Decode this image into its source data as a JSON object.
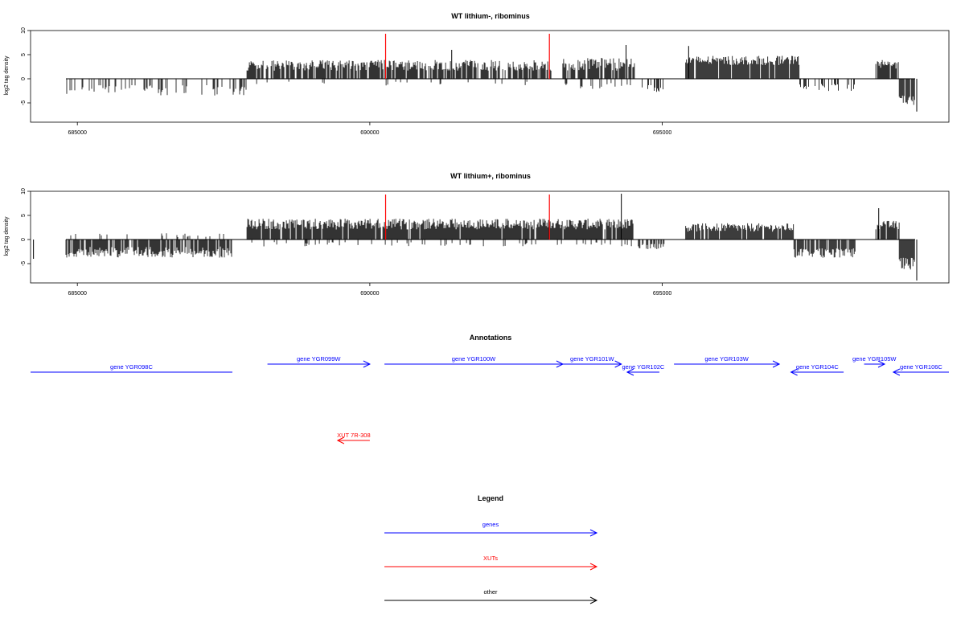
{
  "chart_data": [
    {
      "type": "bar",
      "title": "WT lithium-, ribominus",
      "ylabel": "log2 tag density",
      "xlabel": "",
      "xlim": [
        684200,
        699900
      ],
      "ylim": [
        -9,
        10
      ],
      "yticks": [
        10,
        5,
        0,
        -5
      ],
      "xticks": [
        685000,
        690000,
        695000
      ],
      "marker_lines_x": [
        690270,
        693070
      ],
      "marker_color": "#ff0000",
      "grid": false,
      "segments": [
        {
          "from": 684200,
          "to": 687900,
          "sign": -1,
          "mag": 2.4,
          "density": 0.28,
          "variability": 0.9
        },
        {
          "from": 687900,
          "to": 693100,
          "sign": 1,
          "mag": 2.8,
          "density": 0.8,
          "variability": 0.8
        },
        {
          "from": 687900,
          "to": 693100,
          "sign": -1,
          "mag": 1.0,
          "density": 0.05,
          "variability": 0.8
        },
        {
          "from": 693300,
          "to": 694550,
          "sign": 1,
          "mag": 3.0,
          "density": 0.8,
          "variability": 0.9
        },
        {
          "from": 693300,
          "to": 694550,
          "sign": -1,
          "mag": 1.5,
          "density": 0.15,
          "variability": 0.8
        },
        {
          "from": 694600,
          "to": 695050,
          "sign": -1,
          "mag": 2.0,
          "density": 0.35,
          "variability": 0.7
        },
        {
          "from": 695400,
          "to": 697350,
          "sign": 1,
          "mag": 3.8,
          "density": 0.95,
          "variability": 0.5
        },
        {
          "from": 697350,
          "to": 698300,
          "sign": -1,
          "mag": 1.8,
          "density": 0.4,
          "variability": 0.8
        },
        {
          "from": 698650,
          "to": 699050,
          "sign": 1,
          "mag": 3.0,
          "density": 0.85,
          "variability": 0.6
        },
        {
          "from": 699050,
          "to": 699400,
          "sign": -1,
          "mag": 4.5,
          "density": 0.95,
          "variability": 0.5
        }
      ],
      "peaks": [
        {
          "x": 691400,
          "y": 6.0
        },
        {
          "x": 694380,
          "y": 7.0
        },
        {
          "x": 695450,
          "y": 6.8
        },
        {
          "x": 699350,
          "y": -6.8
        }
      ]
    },
    {
      "type": "bar",
      "title": "WT lithium+, ribominus",
      "ylabel": "log2 tag density",
      "xlabel": "",
      "xlim": [
        684200,
        699900
      ],
      "ylim": [
        -9,
        10
      ],
      "yticks": [
        10,
        5,
        0,
        -5
      ],
      "xticks": [
        685000,
        690000,
        695000
      ],
      "marker_lines_x": [
        690270,
        693070
      ],
      "marker_color": "#ff0000",
      "grid": false,
      "segments": [
        {
          "from": 684200,
          "to": 687650,
          "sign": -1,
          "mag": 2.6,
          "density": 0.8,
          "variability": 0.9
        },
        {
          "from": 684200,
          "to": 687650,
          "sign": 1,
          "mag": 0.9,
          "density": 0.1,
          "variability": 0.9
        },
        {
          "from": 687900,
          "to": 694500,
          "sign": 1,
          "mag": 3.2,
          "density": 0.95,
          "variability": 0.7
        },
        {
          "from": 687900,
          "to": 694500,
          "sign": -1,
          "mag": 1.0,
          "density": 0.1,
          "variability": 0.9
        },
        {
          "from": 694550,
          "to": 695050,
          "sign": -1,
          "mag": 1.5,
          "density": 0.6,
          "variability": 0.8
        },
        {
          "from": 695400,
          "to": 697250,
          "sign": 1,
          "mag": 2.5,
          "density": 0.9,
          "variability": 0.7
        },
        {
          "from": 697250,
          "to": 698300,
          "sign": -1,
          "mag": 2.8,
          "density": 0.85,
          "variability": 0.7
        },
        {
          "from": 698650,
          "to": 699050,
          "sign": 1,
          "mag": 3.0,
          "density": 0.85,
          "variability": 0.6
        },
        {
          "from": 699050,
          "to": 699400,
          "sign": -1,
          "mag": 5.0,
          "density": 0.95,
          "variability": 0.5
        }
      ],
      "peaks": [
        {
          "x": 684250,
          "y": -4.0
        },
        {
          "x": 694300,
          "y": 9.5
        },
        {
          "x": 698700,
          "y": 6.5
        },
        {
          "x": 699350,
          "y": -8.5
        }
      ]
    }
  ],
  "annotations": {
    "title": "Annotations",
    "genes": [
      {
        "label": "gene YGR098C",
        "start": 684200,
        "end": 687650,
        "strand": "-",
        "row": 1
      },
      {
        "label": "gene YGR099W",
        "start": 688250,
        "end": 690000,
        "strand": "+",
        "row": 0
      },
      {
        "label": "gene YGR100W",
        "start": 690250,
        "end": 693300,
        "strand": "+",
        "row": 0
      },
      {
        "label": "gene YGR101W",
        "start": 693300,
        "end": 694300,
        "strand": "+",
        "row": 0
      },
      {
        "label": "gene YGR102C",
        "start": 694400,
        "end": 694950,
        "strand": "-",
        "row": 1
      },
      {
        "label": "gene YGR103W",
        "start": 695200,
        "end": 697000,
        "strand": "+",
        "row": 0
      },
      {
        "label": "gene YGR104C",
        "start": 697200,
        "end": 698100,
        "strand": "-",
        "row": 1
      },
      {
        "label": "gene YGR105W",
        "start": 698450,
        "end": 698800,
        "strand": "+",
        "row": 0
      },
      {
        "label": "gene YGR106C",
        "start": 698950,
        "end": 699900,
        "strand": "-",
        "row": 1
      }
    ],
    "xuts": [
      {
        "label": "XUT 7R-308",
        "start": 689450,
        "end": 690000,
        "strand": "-"
      }
    ]
  },
  "legend": {
    "title": "Legend",
    "items": [
      {
        "label": "genes",
        "color": "#0000ff"
      },
      {
        "label": "XUTs",
        "color": "#ff0000"
      },
      {
        "label": "other",
        "color": "#000000"
      }
    ]
  },
  "colors": {
    "genes": "#0000ff",
    "xuts": "#ff0000",
    "other": "#000000"
  }
}
